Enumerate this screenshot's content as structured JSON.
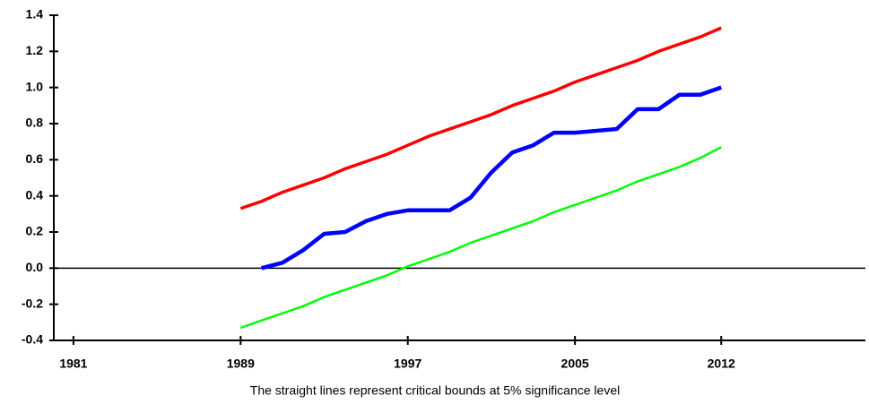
{
  "chart_data": {
    "type": "line",
    "caption": "The straight lines represent critical bounds at 5% significance level",
    "x": [
      1989,
      1990,
      1991,
      1992,
      1993,
      1994,
      1995,
      1996,
      1997,
      1998,
      1999,
      2000,
      2001,
      2002,
      2003,
      2004,
      2005,
      2006,
      2007,
      2008,
      2009,
      2010,
      2011,
      2012
    ],
    "series": [
      {
        "color": "#ff0000",
        "line_width": 3.5,
        "values": [
          0.33,
          0.37,
          0.42,
          0.46,
          0.5,
          0.55,
          0.59,
          0.63,
          0.68,
          0.73,
          0.77,
          0.81,
          0.85,
          0.9,
          0.94,
          0.98,
          1.03,
          1.07,
          1.11,
          1.15,
          1.2,
          1.24,
          1.28,
          1.33
        ]
      },
      {
        "color": "#0000ff",
        "line_width": 4.5,
        "values": [
          null,
          0.0,
          0.03,
          0.1,
          0.19,
          0.2,
          0.26,
          0.3,
          0.32,
          0.32,
          0.32,
          0.39,
          0.53,
          0.64,
          0.68,
          0.75,
          0.75,
          0.76,
          0.77,
          0.88,
          0.88,
          0.96,
          0.96,
          1.0
        ]
      },
      {
        "color": "#00ff00",
        "line_width": 2.5,
        "values": [
          -0.33,
          -0.29,
          -0.25,
          -0.21,
          -0.16,
          -0.12,
          -0.08,
          -0.04,
          0.01,
          0.05,
          0.09,
          0.14,
          0.18,
          0.22,
          0.26,
          0.31,
          0.35,
          0.39,
          0.43,
          0.48,
          0.52,
          0.56,
          0.61,
          0.67
        ]
      }
    ],
    "xlim": [
      1980.06,
      2018.9
    ],
    "xticks": [
      1981,
      1989,
      1997,
      2005,
      2012
    ],
    "ylim": [
      -0.4,
      1.4
    ],
    "yticks": [
      -0.4,
      -0.2,
      {
        "value": 0,
        "label": "0.0"
      },
      0.2,
      0.4,
      0.6,
      0.8,
      {
        "value": 1,
        "label": "1.0"
      },
      1.2,
      1.4
    ],
    "hline": 0
  }
}
